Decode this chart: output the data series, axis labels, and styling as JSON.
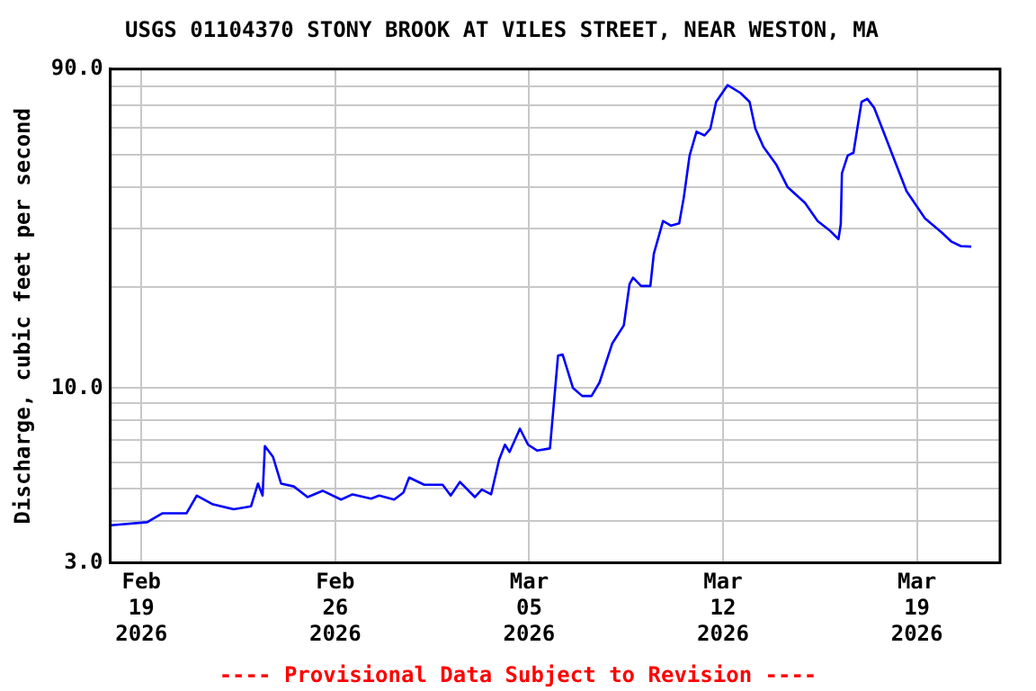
{
  "chart_data": {
    "type": "line",
    "title": "USGS 01104370 STONY BROOK AT VILES STREET, NEAR WESTON, MA",
    "ylabel": "Discharge, cubic feet per second",
    "annotations": [
      "---- Provisional Data Subject to Revision ----"
    ],
    "x": [
      "2026-02-17T22:00",
      "2026-02-19T05:00",
      "2026-02-19T18:00",
      "2026-02-20T15:00",
      "2026-02-21T00:00",
      "2026-02-21T14:00",
      "2026-02-22T08:00",
      "2026-02-22T23:00",
      "2026-02-23T05:00",
      "2026-02-23T09:00",
      "2026-02-23T11:00",
      "2026-02-23T18:00",
      "2026-02-24T01:00",
      "2026-02-24T12:00",
      "2026-02-25T00:00",
      "2026-02-25T13:00",
      "2026-02-26T05:00",
      "2026-02-26T15:00",
      "2026-02-27T07:00",
      "2026-02-27T14:00",
      "2026-02-28T03:00",
      "2026-02-28T11:00",
      "2026-02-28T16:00",
      "2026-03-01T05:00",
      "2026-03-01T21:00",
      "2026-03-02T04:00",
      "2026-03-02T12:00",
      "2026-03-03T01:00",
      "2026-03-03T07:00",
      "2026-03-03T15:00",
      "2026-03-03T22:00",
      "2026-03-04T03:00",
      "2026-03-04T07:00",
      "2026-03-04T16:00",
      "2026-03-04T23:00",
      "2026-03-05T07:00",
      "2026-03-05T18:00",
      "2026-03-06T01:00",
      "2026-03-06T05:00",
      "2026-03-06T14:00",
      "2026-03-06T22:00",
      "2026-03-07T06:00",
      "2026-03-07T13:00",
      "2026-03-08T00:00",
      "2026-03-08T10:00",
      "2026-03-08T15:00",
      "2026-03-08T18:00",
      "2026-03-09T01:00",
      "2026-03-09T09:00",
      "2026-03-09T12:00",
      "2026-03-09T20:00",
      "2026-03-10T03:00",
      "2026-03-10T10:00",
      "2026-03-10T14:00",
      "2026-03-10T19:00",
      "2026-03-11T01:00",
      "2026-03-11T08:00",
      "2026-03-11T13:00",
      "2026-03-11T18:00",
      "2026-03-12T04:00",
      "2026-03-12T15:00",
      "2026-03-12T23:00",
      "2026-03-13T04:00",
      "2026-03-13T11:00",
      "2026-03-13T22:00",
      "2026-03-14T08:00",
      "2026-03-14T23:00",
      "2026-03-15T10:00",
      "2026-03-15T20:00",
      "2026-03-16T04:00",
      "2026-03-16T06:00",
      "2026-03-16T07:00",
      "2026-03-16T12:00",
      "2026-03-16T17:00",
      "2026-03-17T00:00",
      "2026-03-17T05:00",
      "2026-03-17T11:00",
      "2026-03-17T18:00",
      "2026-03-18T05:00",
      "2026-03-18T15:00",
      "2026-03-19T07:00",
      "2026-03-19T22:00",
      "2026-03-20T06:00",
      "2026-03-20T14:00",
      "2026-03-20T23:00"
    ],
    "series": [
      {
        "color": "#0000ff",
        "values": [
          3.89,
          3.97,
          4.22,
          4.22,
          4.77,
          4.49,
          4.34,
          4.43,
          5.18,
          4.77,
          6.71,
          6.23,
          5.18,
          5.08,
          4.72,
          4.93,
          4.64,
          4.81,
          4.67,
          4.77,
          4.64,
          4.87,
          5.4,
          5.14,
          5.14,
          4.77,
          5.24,
          4.72,
          4.97,
          4.81,
          6.11,
          6.77,
          6.44,
          7.56,
          6.77,
          6.5,
          6.6,
          12.5,
          12.6,
          10.0,
          9.47,
          9.47,
          10.4,
          13.6,
          15.4,
          20.5,
          21.4,
          20.2,
          20.2,
          25.2,
          31.6,
          30.6,
          31.1,
          37.2,
          49.6,
          58.5,
          57.0,
          59.7,
          71.8,
          80.6,
          76.4,
          71.8,
          59.7,
          52.7,
          46.7,
          39.9,
          35.8,
          31.6,
          29.7,
          27.9,
          30.9,
          43.9,
          49.6,
          50.6,
          71.8,
          73.3,
          68.9,
          59.7,
          47.6,
          38.8,
          32.2,
          29.1,
          27.4,
          26.6,
          26.5
        ]
      }
    ],
    "xlim": [
      "2026-02-17T21:00",
      "2026-03-22T00:00"
    ],
    "xticks": [
      {
        "value": "2026-02-19",
        "label": "Feb 19 2026"
      },
      {
        "value": "2026-02-26",
        "label": "Feb 26 2026"
      },
      {
        "value": "2026-03-05",
        "label": "Mar 05 2026"
      },
      {
        "value": "2026-03-12",
        "label": "Mar 12 2026"
      },
      {
        "value": "2026-03-19",
        "label": "Mar 19 2026"
      }
    ],
    "ylim": [
      3,
      90
    ],
    "yticks": [
      {
        "value": 3,
        "label": "3.0"
      },
      {
        "value": 4,
        "label": null
      },
      {
        "value": 5,
        "label": null
      },
      {
        "value": 6,
        "label": null
      },
      {
        "value": 7,
        "label": null
      },
      {
        "value": 8,
        "label": null
      },
      {
        "value": 9,
        "label": null
      },
      {
        "value": 10,
        "label": "10.0"
      },
      {
        "value": 20,
        "label": null
      },
      {
        "value": 30,
        "label": null
      },
      {
        "value": 40,
        "label": null
      },
      {
        "value": 50,
        "label": null
      },
      {
        "value": 60,
        "label": null
      },
      {
        "value": 70,
        "label": null
      },
      {
        "value": 80,
        "label": null
      },
      {
        "value": 90,
        "label": "90.0"
      }
    ],
    "log": true,
    "grid": true,
    "legend": false,
    "marker": "none",
    "line_style": "solid"
  }
}
